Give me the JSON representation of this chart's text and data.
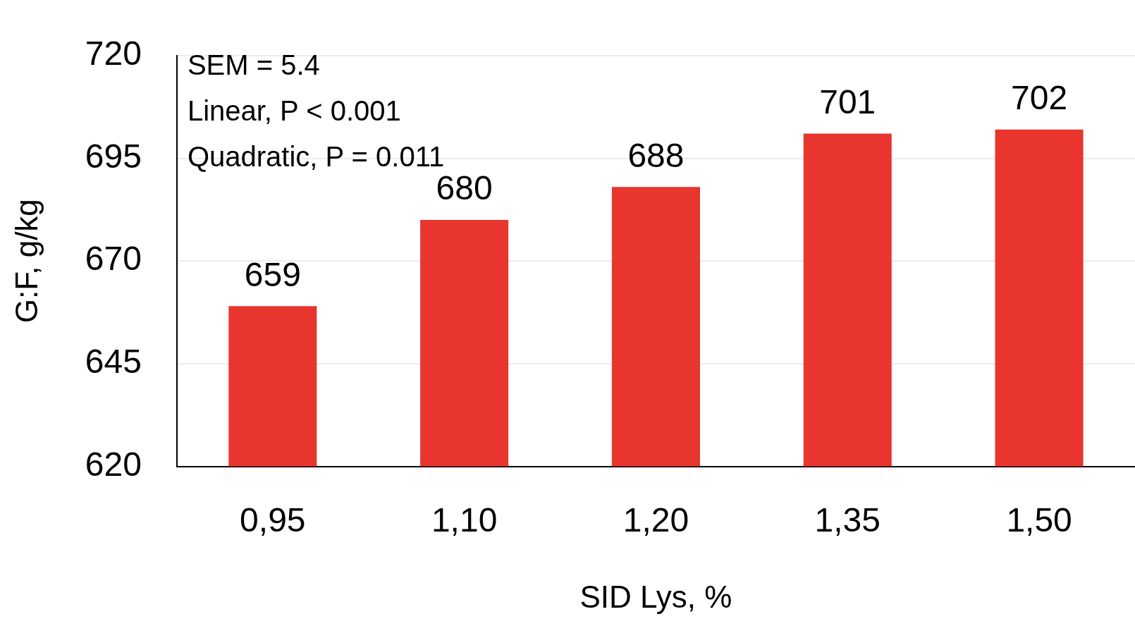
{
  "chart_data": {
    "type": "bar",
    "xlabel": "SID Lys, %",
    "ylabel": "G:F, g/kg",
    "categories": [
      "0,95",
      "1,10",
      "1,20",
      "1,35",
      "1,50"
    ],
    "values": [
      659,
      680,
      688,
      701,
      702
    ],
    "color": "#e8352e",
    "ylim": [
      620,
      720
    ],
    "yticks": [
      620,
      645,
      670,
      695,
      720
    ],
    "grid": "y",
    "legend": false,
    "data_labels": true,
    "annotations": [
      "SEM = 5.4",
      "Linear, P < 0.001",
      "Quadratic, P = 0.011"
    ]
  }
}
